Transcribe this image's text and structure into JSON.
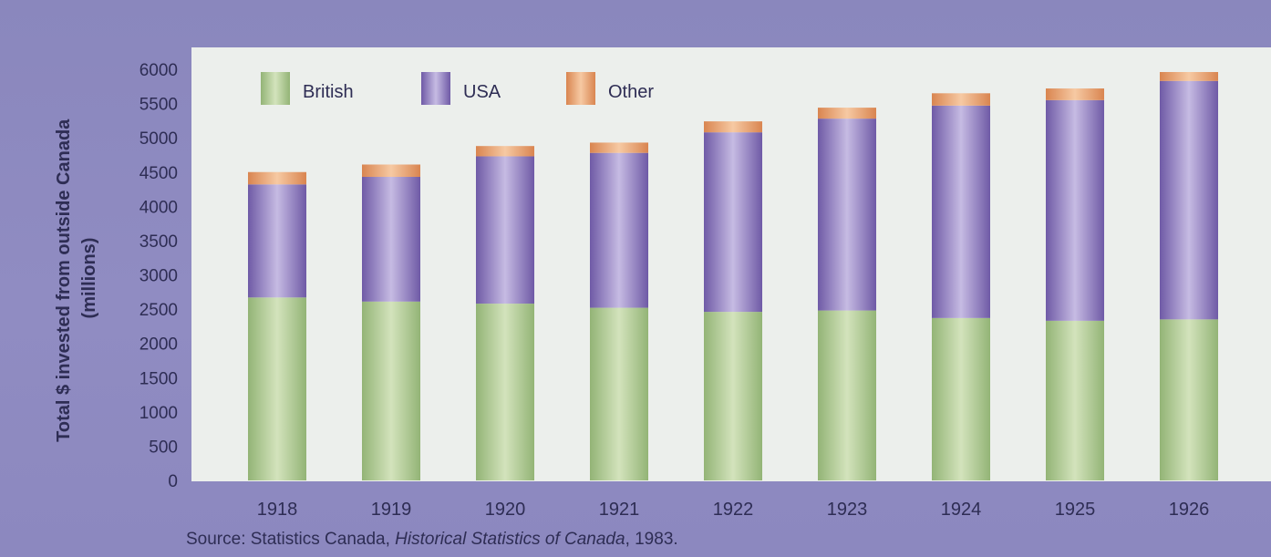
{
  "chart_data": {
    "type": "bar",
    "stacked": true,
    "categories": [
      "1918",
      "1919",
      "1920",
      "1921",
      "1922",
      "1923",
      "1924",
      "1925",
      "1926"
    ],
    "series": [
      {
        "name": "British",
        "values": [
          2670,
          2610,
          2580,
          2520,
          2460,
          2480,
          2370,
          2330,
          2350
        ],
        "color": "#a9c58e"
      },
      {
        "name": "USA",
        "values": [
          1650,
          1820,
          2150,
          2260,
          2620,
          2800,
          3100,
          3220,
          3480
        ],
        "color": "#8f7bbd"
      },
      {
        "name": "Other",
        "values": [
          180,
          180,
          150,
          150,
          160,
          160,
          180,
          170,
          130
        ],
        "color": "#e39a6a"
      }
    ],
    "yticks": [
      "0",
      "500",
      "1000",
      "1500",
      "2000",
      "2500",
      "3000",
      "3500",
      "4000",
      "4500",
      "5000",
      "5500",
      "6000"
    ],
    "ylim": [
      0,
      6000
    ],
    "ylabel_line1": "Total $ invested from outside Canada",
    "ylabel_line2": "(millions)",
    "xlabel": "",
    "title": "",
    "grid": false,
    "legend_position": "top-left"
  },
  "source": {
    "prefix": "Source: Statistics Canada, ",
    "title": "Historical Statistics of Canada",
    "suffix": ", 1983."
  }
}
